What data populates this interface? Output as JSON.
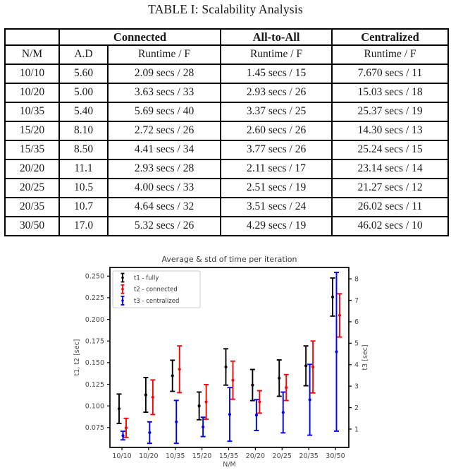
{
  "table": {
    "caption": "TABLE I: Scalability Analysis",
    "group_headers": [
      "Connected",
      "All-to-All",
      "Centralized"
    ],
    "col_headers": [
      "N/M",
      "A.D",
      "Runtime / F",
      "Runtime / F",
      "Runtime / F"
    ],
    "rows": [
      [
        "10/10",
        "5.60",
        "2.09 secs / 28",
        "1.45 secs / 15",
        "7.670 secs / 11"
      ],
      [
        "10/20",
        "5.00",
        "3.63 secs / 33",
        "2.93 secs / 26",
        "15.03 secs / 18"
      ],
      [
        "10/35",
        "5.40",
        "5.69 secs / 40",
        "3.37 secs / 25",
        "25.37 secs / 19"
      ],
      [
        "15/20",
        "8.10",
        "2.72 secs / 26",
        "2.60 secs / 26",
        "14.30 secs / 13"
      ],
      [
        "15/35",
        "8.50",
        "4.41 secs / 34",
        "3.77 secs / 26",
        "25.24 secs / 15"
      ],
      [
        "20/20",
        "11.1",
        "2.93 secs / 28",
        "2.11 secs / 17",
        "23.14 secs / 14"
      ],
      [
        "20/25",
        "10.5",
        "4.00 secs / 33",
        "2.51 secs / 19",
        "21.27 secs / 12"
      ],
      [
        "20/35",
        "10.7",
        "4.64 secs / 32",
        "3.51 secs / 24",
        "26.02 secs / 11"
      ],
      [
        "30/50",
        "17.0",
        "5.32 secs / 26",
        "4.29 secs / 19",
        "46.02 secs / 10"
      ]
    ]
  },
  "chart_data": {
    "type": "errorbar",
    "title": "Average & std of time per iteration",
    "xlabel": "N/M",
    "ylabel_left": "t1, t2 [sec]",
    "ylabel_right": "t3 [sec]",
    "categories": [
      "10/10",
      "10/20",
      "10/35",
      "15/20",
      "15/35",
      "20/20",
      "20/25",
      "20/35",
      "30/50"
    ],
    "yticks_left": [
      "0.075",
      "0.100",
      "0.125",
      "0.150",
      "0.175",
      "0.200",
      "0.225",
      "0.250"
    ],
    "yticks_left_values": [
      0.075,
      0.1,
      0.125,
      0.15,
      0.175,
      0.2,
      0.225,
      0.25
    ],
    "yticks_right": [
      "1",
      "2",
      "3",
      "4",
      "5",
      "6",
      "7",
      "8"
    ],
    "yticks_right_values": [
      1,
      2,
      3,
      4,
      5,
      6,
      7,
      8
    ],
    "ylim_left": [
      0.052,
      0.26
    ],
    "ylim_right": [
      0.145,
      8.53
    ],
    "grid": false,
    "legend_position": "upper-left",
    "series": [
      {
        "name": "t1 - fully",
        "color": "#000000",
        "axis": "left",
        "means": [
          0.0967,
          0.1127,
          0.1348,
          0.1,
          0.145,
          0.1241,
          0.1321,
          0.1463,
          0.2258
        ],
        "stds": [
          0.017,
          0.02,
          0.018,
          0.016,
          0.021,
          0.018,
          0.021,
          0.023,
          0.022
        ]
      },
      {
        "name": "t2 - connected",
        "color": "#ff0000",
        "axis": "left",
        "means": [
          0.0746,
          0.11,
          0.1423,
          0.1046,
          0.1297,
          0.1046,
          0.1212,
          0.145,
          0.2046
        ],
        "stds": [
          0.011,
          0.02,
          0.027,
          0.02,
          0.022,
          0.013,
          0.015,
          0.03,
          0.025
        ]
      },
      {
        "name": "t3 - centralized",
        "color": "#0000ff",
        "axis": "right",
        "means": [
          0.697,
          0.835,
          1.335,
          1.1,
          1.683,
          1.653,
          1.773,
          2.365,
          4.602
        ],
        "stds": [
          0.2,
          0.5,
          1.0,
          0.45,
          1.25,
          0.72,
          0.95,
          1.65,
          3.7
        ]
      }
    ]
  }
}
